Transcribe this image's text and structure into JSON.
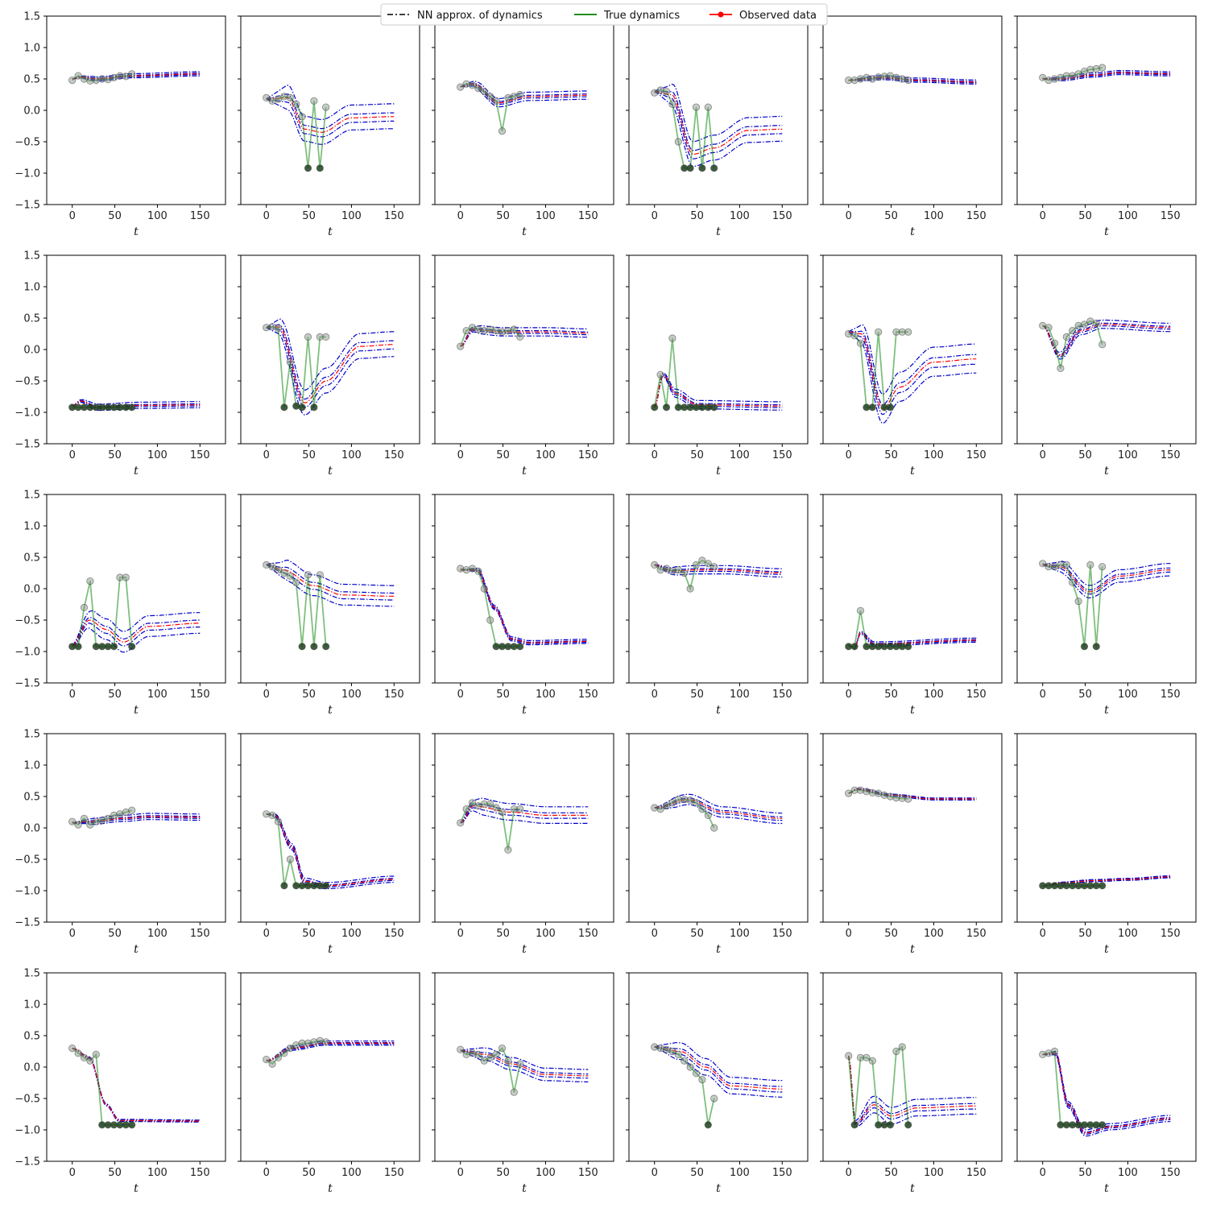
{
  "figure": {
    "rows": 5,
    "cols": 6,
    "colors": {
      "nn": "#0000cc",
      "nn_center": "#ff0000",
      "true": "#008000",
      "observed_fill": "#7f8f7f",
      "observed_dark": "#1f3f1f"
    }
  },
  "legend": {
    "placement": "top-center",
    "entries": [
      {
        "label": "NN approx. of dynamics",
        "style": "dashdot",
        "color": "#000000"
      },
      {
        "label": "True dynamics",
        "style": "solid",
        "color": "#008000"
      },
      {
        "label": "Observed data",
        "style": "solid-marker",
        "color": "#ff0000"
      }
    ]
  },
  "chart_data": {
    "type": "line",
    "grid": false,
    "xlabel": "t",
    "xlim": [
      -30,
      180
    ],
    "ylim": [
      -1.5,
      1.5
    ],
    "xticks": [
      0,
      50,
      100,
      150
    ],
    "yticks": [
      -1.5,
      -1.0,
      -0.5,
      0.0,
      0.5,
      1.0,
      1.5
    ],
    "ytick_labels": [
      "−1.5",
      "−1.0",
      "−0.5",
      "0.0",
      "0.5",
      "1.0",
      "1.5"
    ],
    "sample_times": [
      0,
      7,
      14,
      21,
      28,
      35,
      42,
      49,
      56,
      63,
      70
    ],
    "panels": [
      {
        "obs": [
          0.48,
          0.55,
          0.5,
          0.47,
          0.48,
          0.5,
          0.49,
          0.52,
          0.55,
          0.54,
          0.58
        ],
        "nn": [
          [
            0,
            0.5
          ],
          [
            10,
            0.53
          ],
          [
            30,
            0.5
          ],
          [
            70,
            0.55
          ],
          [
            150,
            0.58
          ]
        ],
        "spread": 0.02
      },
      {
        "obs": [
          0.2,
          0.15,
          0.18,
          0.22,
          0.2,
          0.1,
          -0.1,
          -0.92,
          0.15,
          -0.92,
          0.05
        ],
        "nn": [
          [
            0,
            0.18
          ],
          [
            25,
            0.2
          ],
          [
            45,
            -0.3
          ],
          [
            65,
            -0.35
          ],
          [
            100,
            -0.12
          ],
          [
            150,
            -0.1
          ]
        ],
        "spread": 0.12
      },
      {
        "obs": [
          0.37,
          0.42,
          0.4,
          0.35,
          0.3,
          0.22,
          0.15,
          -0.33,
          0.2,
          0.22,
          0.25
        ],
        "nn": [
          [
            0,
            0.38
          ],
          [
            15,
            0.42
          ],
          [
            45,
            0.12
          ],
          [
            80,
            0.22
          ],
          [
            150,
            0.24
          ]
        ],
        "spread": 0.04
      },
      {
        "obs": [
          0.28,
          0.32,
          0.3,
          0.1,
          -0.5,
          -0.92,
          -0.92,
          0.05,
          -0.92,
          0.05,
          -0.92
        ],
        "nn": [
          [
            0,
            0.3
          ],
          [
            20,
            0.25
          ],
          [
            45,
            -0.7
          ],
          [
            70,
            -0.6
          ],
          [
            110,
            -0.32
          ],
          [
            150,
            -0.3
          ]
        ],
        "spread": 0.12
      },
      {
        "obs": [
          0.48,
          0.48,
          0.5,
          0.52,
          0.5,
          0.53,
          0.54,
          0.55,
          0.52,
          0.5,
          0.48
        ],
        "nn": [
          [
            0,
            0.48
          ],
          [
            40,
            0.52
          ],
          [
            80,
            0.48
          ],
          [
            150,
            0.45
          ]
        ],
        "spread": 0.02
      },
      {
        "obs": [
          0.52,
          0.48,
          0.5,
          0.52,
          0.55,
          0.55,
          0.58,
          0.62,
          0.65,
          0.66,
          0.68
        ],
        "nn": [
          [
            0,
            0.5
          ],
          [
            20,
            0.5
          ],
          [
            60,
            0.56
          ],
          [
            90,
            0.6
          ],
          [
            150,
            0.58
          ]
        ],
        "spread": 0.02
      },
      {
        "obs": [
          -0.92,
          -0.92,
          -0.92,
          -0.92,
          -0.92,
          -0.92,
          -0.92,
          -0.92,
          -0.92,
          -0.92,
          -0.92
        ],
        "nn": [
          [
            0,
            -0.9
          ],
          [
            10,
            -0.82
          ],
          [
            30,
            -0.92
          ],
          [
            80,
            -0.89
          ],
          [
            150,
            -0.88
          ]
        ],
        "spread": 0.03
      },
      {
        "obs": [
          0.35,
          0.36,
          0.34,
          -0.92,
          -0.2,
          -0.9,
          -0.92,
          0.2,
          -0.92,
          0.2,
          0.2
        ],
        "nn": [
          [
            0,
            0.35
          ],
          [
            15,
            0.36
          ],
          [
            45,
            -0.85
          ],
          [
            70,
            -0.5
          ],
          [
            110,
            0.05
          ],
          [
            150,
            0.08
          ]
        ],
        "spread": 0.12
      },
      {
        "obs": [
          0.05,
          0.3,
          0.35,
          0.32,
          0.3,
          0.32,
          0.3,
          0.28,
          0.3,
          0.32,
          0.2
        ],
        "nn": [
          [
            0,
            0.05
          ],
          [
            15,
            0.32
          ],
          [
            50,
            0.28
          ],
          [
            100,
            0.28
          ],
          [
            150,
            0.26
          ]
        ],
        "spread": 0.04
      },
      {
        "obs": [
          -0.92,
          -0.4,
          -0.92,
          0.18,
          -0.92,
          -0.92,
          -0.92,
          -0.92,
          -0.92,
          -0.92,
          -0.92
        ],
        "nn": [
          [
            0,
            -0.92
          ],
          [
            10,
            -0.4
          ],
          [
            25,
            -0.7
          ],
          [
            50,
            -0.88
          ],
          [
            150,
            -0.9
          ]
        ],
        "spread": 0.04
      },
      {
        "obs": [
          0.25,
          0.22,
          0.1,
          -0.92,
          -0.92,
          0.28,
          -0.92,
          -0.92,
          0.28,
          0.28,
          0.28
        ],
        "nn": [
          [
            0,
            0.28
          ],
          [
            15,
            0.25
          ],
          [
            40,
            -0.95
          ],
          [
            60,
            -0.6
          ],
          [
            100,
            -0.2
          ],
          [
            150,
            -0.15
          ]
        ],
        "spread": 0.14
      },
      {
        "obs": [
          0.38,
          0.35,
          0.1,
          -0.3,
          0.2,
          0.3,
          0.38,
          0.4,
          0.45,
          0.42,
          0.08
        ],
        "nn": [
          [
            0,
            0.38
          ],
          [
            20,
            -0.1
          ],
          [
            45,
            0.3
          ],
          [
            70,
            0.4
          ],
          [
            150,
            0.35
          ]
        ],
        "spread": 0.04
      },
      {
        "obs": [
          -0.92,
          -0.92,
          -0.3,
          0.12,
          -0.92,
          -0.92,
          -0.92,
          -0.92,
          0.18,
          0.18,
          -0.92
        ],
        "nn": [
          [
            0,
            -0.9
          ],
          [
            20,
            -0.5
          ],
          [
            40,
            -0.65
          ],
          [
            60,
            -0.85
          ],
          [
            90,
            -0.6
          ],
          [
            150,
            -0.55
          ]
        ],
        "spread": 0.1
      },
      {
        "obs": [
          0.38,
          0.35,
          0.3,
          0.25,
          0.2,
          0.1,
          -0.92,
          0.22,
          -0.92,
          0.22,
          -0.92
        ],
        "nn": [
          [
            0,
            0.38
          ],
          [
            20,
            0.3
          ],
          [
            55,
            0.05
          ],
          [
            90,
            -0.1
          ],
          [
            150,
            -0.12
          ]
        ],
        "spread": 0.1
      },
      {
        "obs": [
          0.32,
          0.3,
          0.32,
          0.28,
          0.0,
          -0.5,
          -0.92,
          -0.92,
          -0.92,
          -0.92,
          -0.92
        ],
        "nn": [
          [
            0,
            0.3
          ],
          [
            20,
            0.3
          ],
          [
            40,
            -0.3
          ],
          [
            60,
            -0.8
          ],
          [
            80,
            -0.86
          ],
          [
            150,
            -0.84
          ]
        ],
        "spread": 0.02
      },
      {
        "obs": [
          0.38,
          0.3,
          0.32,
          0.28,
          0.3,
          0.25,
          0.0,
          0.38,
          0.45,
          0.4,
          0.35
        ],
        "nn": [
          [
            0,
            0.38
          ],
          [
            20,
            0.28
          ],
          [
            50,
            0.3
          ],
          [
            80,
            0.3
          ],
          [
            150,
            0.25
          ]
        ],
        "spread": 0.04
      },
      {
        "obs": [
          -0.92,
          -0.92,
          -0.35,
          -0.92,
          -0.92,
          -0.92,
          -0.92,
          -0.92,
          -0.92,
          -0.92,
          -0.92
        ],
        "nn": [
          [
            0,
            -0.9
          ],
          [
            7,
            -0.95
          ],
          [
            14,
            -0.7
          ],
          [
            30,
            -0.88
          ],
          [
            150,
            -0.82
          ]
        ],
        "spread": 0.02
      },
      {
        "obs": [
          0.4,
          0.35,
          0.35,
          0.38,
          0.38,
          0.1,
          -0.2,
          -0.92,
          0.38,
          -0.92,
          0.35
        ],
        "nn": [
          [
            0,
            0.38
          ],
          [
            20,
            0.35
          ],
          [
            55,
            -0.05
          ],
          [
            90,
            0.2
          ],
          [
            150,
            0.3
          ]
        ],
        "spread": 0.06
      },
      {
        "obs": [
          0.1,
          0.05,
          0.15,
          0.05,
          0.1,
          0.12,
          0.15,
          0.2,
          0.22,
          0.25,
          0.28
        ],
        "nn": [
          [
            0,
            0.08
          ],
          [
            20,
            0.1
          ],
          [
            60,
            0.15
          ],
          [
            90,
            0.18
          ],
          [
            150,
            0.17
          ]
        ],
        "spread": 0.03
      },
      {
        "obs": [
          0.22,
          0.2,
          0.1,
          -0.92,
          -0.5,
          -0.92,
          -0.92,
          -0.92,
          -0.92,
          -0.92,
          -0.92
        ],
        "nn": [
          [
            0,
            0.22
          ],
          [
            10,
            0.2
          ],
          [
            30,
            -0.3
          ],
          [
            45,
            -0.85
          ],
          [
            70,
            -0.92
          ],
          [
            150,
            -0.82
          ]
        ],
        "spread": 0.03
      },
      {
        "obs": [
          0.08,
          0.3,
          0.4,
          0.35,
          0.38,
          0.38,
          0.32,
          0.25,
          -0.35,
          0.3,
          0.3
        ],
        "nn": [
          [
            0,
            0.08
          ],
          [
            15,
            0.35
          ],
          [
            60,
            0.25
          ],
          [
            100,
            0.2
          ],
          [
            150,
            0.2
          ]
        ],
        "spread": 0.08
      },
      {
        "obs": [
          0.32,
          0.3,
          0.35,
          0.4,
          0.45,
          0.45,
          0.44,
          0.4,
          0.3,
          0.2,
          0.0
        ],
        "nn": [
          [
            0,
            0.32
          ],
          [
            40,
            0.45
          ],
          [
            80,
            0.25
          ],
          [
            150,
            0.15
          ]
        ],
        "spread": 0.05
      },
      {
        "obs": [
          0.55,
          0.6,
          0.6,
          0.58,
          0.56,
          0.55,
          0.52,
          0.5,
          0.48,
          0.47,
          0.46
        ],
        "nn": [
          [
            0,
            0.55
          ],
          [
            10,
            0.62
          ],
          [
            50,
            0.52
          ],
          [
            100,
            0.46
          ],
          [
            150,
            0.46
          ]
        ],
        "spread": 0.01
      },
      {
        "obs": [
          -0.92,
          -0.92,
          -0.92,
          -0.92,
          -0.92,
          -0.92,
          -0.92,
          -0.92,
          -0.92,
          -0.92,
          -0.92
        ],
        "nn": [
          [
            0,
            -0.92
          ],
          [
            20,
            -0.88
          ],
          [
            60,
            -0.84
          ],
          [
            100,
            -0.82
          ],
          [
            150,
            -0.78
          ]
        ],
        "spread": 0.01
      },
      {
        "obs": [
          0.3,
          0.22,
          0.15,
          0.1,
          0.2,
          -0.92,
          -0.92,
          -0.92,
          -0.92,
          -0.92,
          -0.92
        ],
        "nn": [
          [
            0,
            0.3
          ],
          [
            20,
            0.15
          ],
          [
            40,
            -0.6
          ],
          [
            55,
            -0.85
          ],
          [
            150,
            -0.86
          ]
        ],
        "spread": 0.01
      },
      {
        "obs": [
          0.12,
          0.05,
          0.15,
          0.22,
          0.3,
          0.35,
          0.38,
          0.38,
          0.4,
          0.42,
          0.4
        ],
        "nn": [
          [
            0,
            0.1
          ],
          [
            30,
            0.3
          ],
          [
            70,
            0.38
          ],
          [
            150,
            0.38
          ]
        ],
        "spread": 0.02
      },
      {
        "obs": [
          0.28,
          0.2,
          0.22,
          0.2,
          0.1,
          0.15,
          0.2,
          0.3,
          0.1,
          -0.4,
          0.05
        ],
        "nn": [
          [
            0,
            0.26
          ],
          [
            30,
            0.2
          ],
          [
            60,
            0.05
          ],
          [
            100,
            -0.12
          ],
          [
            150,
            -0.14
          ]
        ],
        "spread": 0.06
      },
      {
        "obs": [
          0.32,
          0.3,
          0.28,
          0.25,
          0.2,
          0.1,
          0.0,
          -0.1,
          -0.2,
          -0.92,
          -0.5
        ],
        "nn": [
          [
            0,
            0.32
          ],
          [
            30,
            0.25
          ],
          [
            60,
            0.0
          ],
          [
            90,
            -0.3
          ],
          [
            150,
            -0.35
          ]
        ],
        "spread": 0.08
      },
      {
        "obs": [
          0.18,
          -0.92,
          0.15,
          0.15,
          0.1,
          -0.92,
          -0.92,
          -0.92,
          0.25,
          0.32,
          -0.92
        ],
        "nn": [
          [
            0,
            0.18
          ],
          [
            8,
            -0.9
          ],
          [
            30,
            -0.6
          ],
          [
            50,
            -0.78
          ],
          [
            80,
            -0.65
          ],
          [
            150,
            -0.62
          ]
        ],
        "spread": 0.08
      },
      {
        "obs": [
          0.2,
          0.22,
          0.25,
          -0.92,
          -0.92,
          -0.92,
          -0.92,
          -0.92,
          -0.92,
          -0.92,
          -0.92
        ],
        "nn": [
          [
            0,
            0.2
          ],
          [
            15,
            0.22
          ],
          [
            30,
            -0.6
          ],
          [
            50,
            -1.05
          ],
          [
            80,
            -0.95
          ],
          [
            150,
            -0.82
          ]
        ],
        "spread": 0.03
      }
    ]
  }
}
